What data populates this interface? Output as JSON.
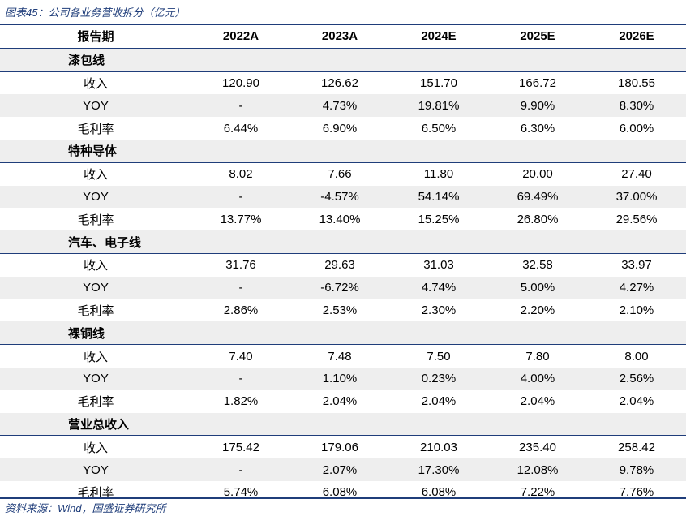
{
  "caption": "图表45：公司各业务营收拆分（亿元）",
  "source": "资料来源：Wind，国盛证券研究所",
  "header": {
    "label": "报告期",
    "years": [
      "2022A",
      "2023A",
      "2024E",
      "2025E",
      "2026E"
    ]
  },
  "sections": [
    {
      "title": "漆包线",
      "rows": [
        {
          "label": "收入",
          "values": [
            "120.90",
            "126.62",
            "151.70",
            "166.72",
            "180.55"
          ]
        },
        {
          "label": "YOY",
          "values": [
            "-",
            "4.73%",
            "19.81%",
            "9.90%",
            "8.30%"
          ]
        },
        {
          "label": "毛利率",
          "values": [
            "6.44%",
            "6.90%",
            "6.50%",
            "6.30%",
            "6.00%"
          ]
        }
      ]
    },
    {
      "title": "特种导体",
      "rows": [
        {
          "label": "收入",
          "values": [
            "8.02",
            "7.66",
            "11.80",
            "20.00",
            "27.40"
          ]
        },
        {
          "label": "YOY",
          "values": [
            "-",
            "-4.57%",
            "54.14%",
            "69.49%",
            "37.00%"
          ]
        },
        {
          "label": "毛利率",
          "values": [
            "13.77%",
            "13.40%",
            "15.25%",
            "26.80%",
            "29.56%"
          ]
        }
      ]
    },
    {
      "title": "汽车、电子线",
      "rows": [
        {
          "label": "收入",
          "values": [
            "31.76",
            "29.63",
            "31.03",
            "32.58",
            "33.97"
          ]
        },
        {
          "label": "YOY",
          "values": [
            "-",
            "-6.72%",
            "4.74%",
            "5.00%",
            "4.27%"
          ]
        },
        {
          "label": "毛利率",
          "values": [
            "2.86%",
            "2.53%",
            "2.30%",
            "2.20%",
            "2.10%"
          ]
        }
      ]
    },
    {
      "title": "裸铜线",
      "rows": [
        {
          "label": "收入",
          "values": [
            "7.40",
            "7.48",
            "7.50",
            "7.80",
            "8.00"
          ]
        },
        {
          "label": "YOY",
          "values": [
            "-",
            "1.10%",
            "0.23%",
            "4.00%",
            "2.56%"
          ]
        },
        {
          "label": "毛利率",
          "values": [
            "1.82%",
            "2.04%",
            "2.04%",
            "2.04%",
            "2.04%"
          ]
        }
      ]
    },
    {
      "title": "营业总收入",
      "rows": [
        {
          "label": "收入",
          "values": [
            "175.42",
            "179.06",
            "210.03",
            "235.40",
            "258.42"
          ]
        },
        {
          "label": "YOY",
          "values": [
            "-",
            "2.07%",
            "17.30%",
            "12.08%",
            "9.78%"
          ]
        },
        {
          "label": "毛利率",
          "values": [
            "5.74%",
            "6.08%",
            "6.08%",
            "7.22%",
            "7.76%"
          ]
        }
      ]
    }
  ]
}
